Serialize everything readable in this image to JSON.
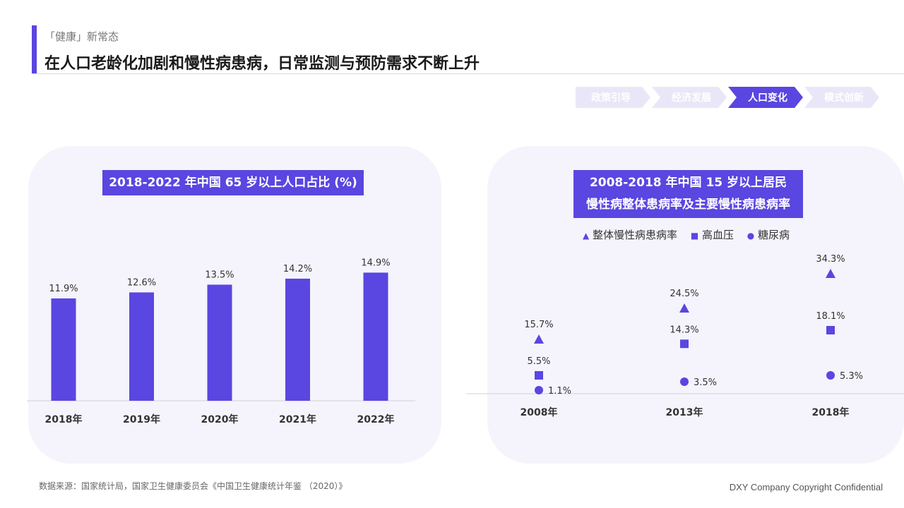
{
  "header": {
    "kicker": "「健康」新常态",
    "title": "在人口老龄化加剧和慢性病患病，日常监测与预防需求不断上升"
  },
  "steps": [
    {
      "label": "政策引导",
      "active": false
    },
    {
      "label": "经济发展",
      "active": false
    },
    {
      "label": "人口变化",
      "active": true
    },
    {
      "label": "模式创新",
      "active": false
    }
  ],
  "colors": {
    "accent": "#5a46e0",
    "step_inactive": "#e9e7f7",
    "card_bg": "#f5f4fc"
  },
  "chart_data": [
    {
      "type": "bar",
      "title": "2018-2022 年中国 65 岁以上人口占比 (%)",
      "categories": [
        "2018年",
        "2019年",
        "2020年",
        "2021年",
        "2022年"
      ],
      "values": [
        11.9,
        12.6,
        13.5,
        14.2,
        14.9
      ],
      "value_labels": [
        "11.9%",
        "12.6%",
        "13.5%",
        "14.2%",
        "14.9%"
      ],
      "ylim": [
        0,
        16
      ],
      "grid": false
    },
    {
      "type": "scatter",
      "title_lines": [
        "2008-2018 年中国 15 岁以上居民",
        "慢性病整体患病率及主要慢性病患病率"
      ],
      "categories": [
        "2008年",
        "2013年",
        "2018年"
      ],
      "legend_position": "top",
      "series": [
        {
          "name": "整体慢性病患病率",
          "marker": "triangle",
          "values": [
            15.7,
            24.5,
            34.3
          ],
          "labels": [
            "15.7%",
            "24.5%",
            "34.3%"
          ]
        },
        {
          "name": "高血压",
          "marker": "square",
          "values": [
            5.5,
            14.3,
            18.1
          ],
          "labels": [
            "5.5%",
            "14.3%",
            "18.1%"
          ]
        },
        {
          "name": "糖尿病",
          "marker": "circle",
          "values": [
            1.1,
            3.5,
            5.3
          ],
          "labels": [
            "1.1%",
            "3.5%",
            "5.3%"
          ]
        }
      ]
    }
  ],
  "footer": {
    "source": "数据来源：国家统计局，国家卫生健康委员会《中国卫生健康统计年鉴 （2020）》",
    "copyright": "DXY Company Copyright Confidential"
  }
}
